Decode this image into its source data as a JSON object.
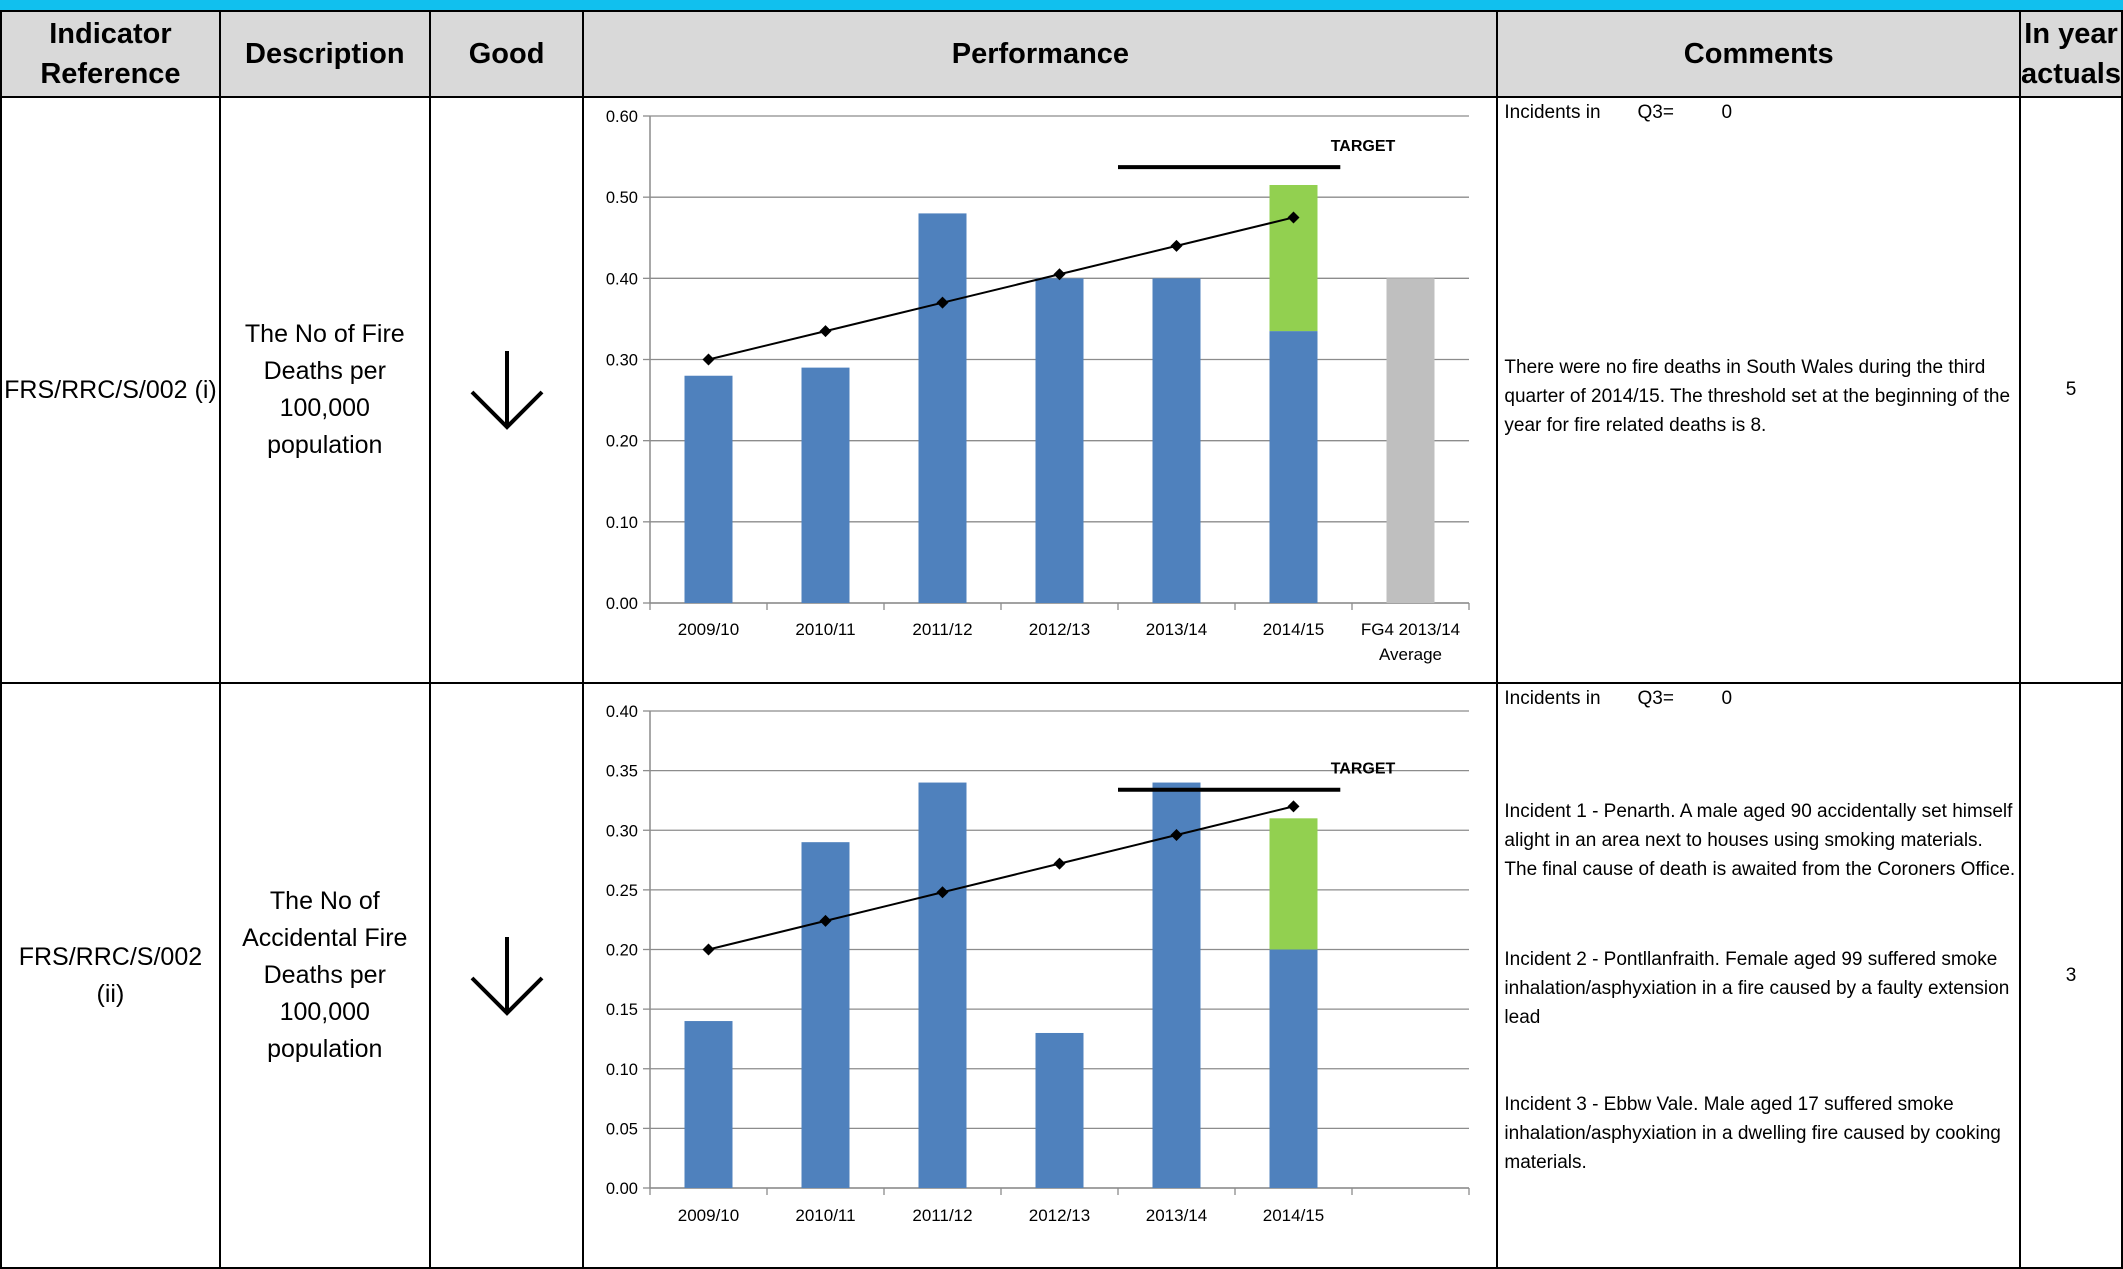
{
  "headers": {
    "reference": "Indicator Reference",
    "description": "Description",
    "good": "Good",
    "performance": "Performance",
    "comments": "Comments",
    "actuals": "In year actuals"
  },
  "rows": [
    {
      "reference": "FRS/RRC/S/002 (i)",
      "description": "The No of Fire Deaths per 100,000 population",
      "good_icon": "arrow-down-icon",
      "incidents_label": "Incidents in",
      "quarter_label": "Q3=",
      "quarter_value": "0",
      "comments": [
        "There were no fire deaths in South Wales during the third quarter of 2014/15. The threshold set at the beginning of the year for fire related deaths is 8."
      ],
      "actual": "5"
    },
    {
      "reference": "FRS/RRC/S/002 (ii)",
      "description": "The No of Accidental Fire Deaths per 100,000 population",
      "good_icon": "arrow-down-icon",
      "incidents_label": "Incidents in",
      "quarter_label": "Q3=",
      "quarter_value": "0",
      "comments": [
        "Incident 1 - Penarth. A male aged 90 accidentally set himself alight in an area next to houses using smoking materials. The final cause of death is awaited from the Coroners Office.",
        "Incident 2 - Pontllanfraith. Female aged 99 suffered smoke inhalation/asphyxiation in a fire caused by a faulty extension lead",
        "Incident 3 - Ebbw Vale. Male aged 17 suffered smoke inhalation/asphyxiation in a dwelling fire caused by cooking materials."
      ],
      "actual": "3"
    }
  ],
  "chart_data": [
    {
      "type": "bar",
      "categories": [
        "2009/10",
        "2010/11",
        "2011/12",
        "2012/13",
        "2013/14",
        "2014/15",
        "FG4 2013/14 Average"
      ],
      "yticks": [
        "0.00",
        "0.10",
        "0.20",
        "0.30",
        "0.40",
        "0.50",
        "0.60"
      ],
      "ylim": [
        0,
        0.6
      ],
      "bars": [
        0.28,
        0.29,
        0.48,
        0.4,
        0.4,
        0.335,
        0.4
      ],
      "bar_colors": [
        "#4f81bd",
        "#4f81bd",
        "#4f81bd",
        "#4f81bd",
        "#4f81bd",
        "#4f81bd",
        "#bfbfbf"
      ],
      "stack_top": {
        "index": 5,
        "value": 0.18,
        "color": "#92d050"
      },
      "trend": [
        0.3,
        0.335,
        0.37,
        0.405,
        0.44,
        0.475
      ],
      "target": {
        "label": "TARGET",
        "value": 0.537,
        "from_index": 4,
        "to_index": 5.9
      },
      "grid": true
    },
    {
      "type": "bar",
      "categories": [
        "2009/10",
        "2010/11",
        "2011/12",
        "2012/13",
        "2013/14",
        "2014/15",
        ""
      ],
      "yticks": [
        "0.00",
        "0.05",
        "0.10",
        "0.15",
        "0.20",
        "0.25",
        "0.30",
        "0.35",
        "0.40"
      ],
      "ylim": [
        0,
        0.4
      ],
      "bars": [
        0.14,
        0.29,
        0.34,
        0.13,
        0.34,
        0.2,
        null
      ],
      "bar_colors": [
        "#4f81bd",
        "#4f81bd",
        "#4f81bd",
        "#4f81bd",
        "#4f81bd",
        "#4f81bd",
        "#bfbfbf"
      ],
      "stack_top": {
        "index": 5,
        "value": 0.11,
        "color": "#92d050"
      },
      "trend": [
        0.2,
        0.224,
        0.248,
        0.272,
        0.296,
        0.32
      ],
      "target": {
        "label": "TARGET",
        "value": 0.334,
        "from_index": 4,
        "to_index": 5.9
      },
      "grid": true
    }
  ]
}
